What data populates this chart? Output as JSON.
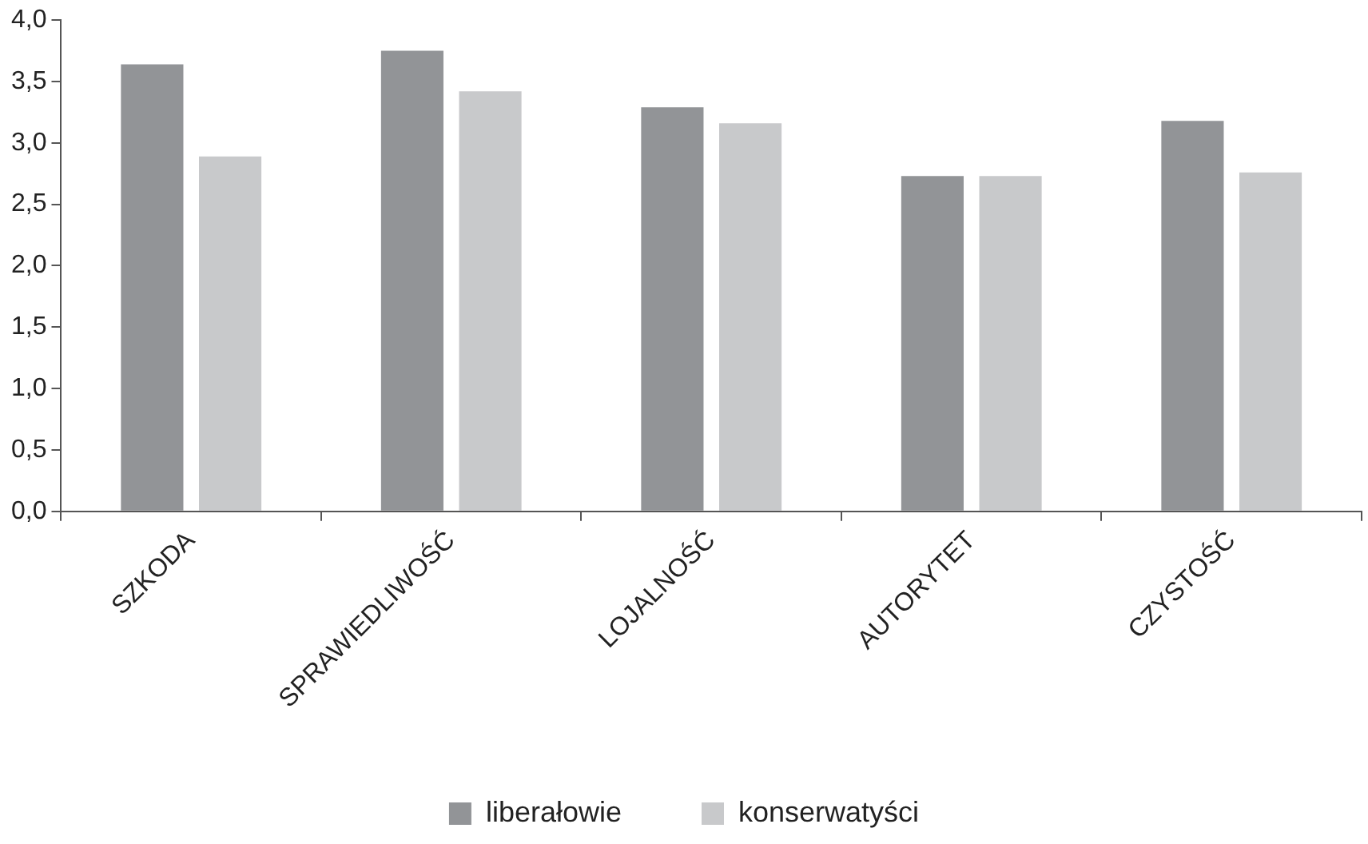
{
  "chart_data": {
    "type": "bar",
    "categories": [
      "SZKODA",
      "SPRAWIEDLIWOŚĆ",
      "LOJALNOŚĆ",
      "AUTORYTET",
      "CZYSTOŚĆ"
    ],
    "series": [
      {
        "name": "liberałowie",
        "color": "#929497",
        "values": [
          3.64,
          3.75,
          3.29,
          2.73,
          3.18
        ]
      },
      {
        "name": "konserwatyści",
        "color": "#c8c9cb",
        "values": [
          2.89,
          3.42,
          3.16,
          2.73,
          2.76
        ]
      }
    ],
    "ylim": [
      0,
      4
    ],
    "yticks": [
      {
        "value": 0,
        "label": "0,0"
      },
      {
        "value": 0.5,
        "label": "0,5"
      },
      {
        "value": 1,
        "label": "1,0"
      },
      {
        "value": 1.5,
        "label": "1,5"
      },
      {
        "value": 2,
        "label": "2,0"
      },
      {
        "value": 2.5,
        "label": "2,5"
      },
      {
        "value": 3,
        "label": "3,0"
      },
      {
        "value": 3.5,
        "label": "3,5"
      },
      {
        "value": 4,
        "label": "4,0"
      }
    ],
    "grid": false,
    "legend": "bottom"
  }
}
